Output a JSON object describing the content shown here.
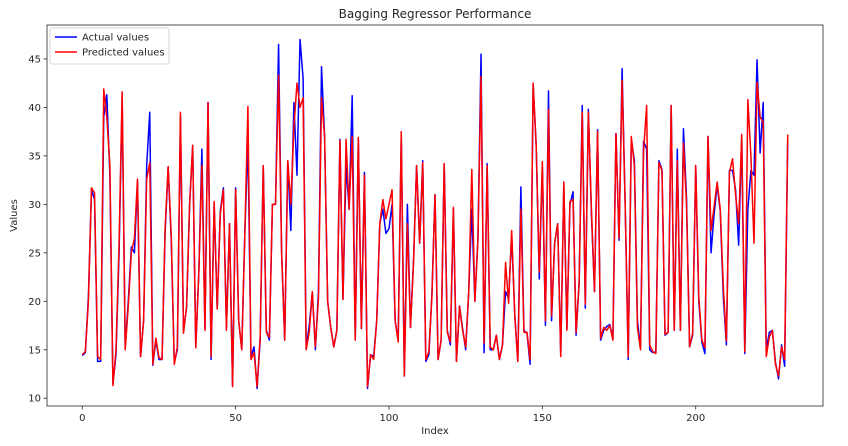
{
  "chart_data": {
    "type": "line",
    "title": "Bagging Regressor Performance",
    "xlabel": "Index",
    "ylabel": "Values",
    "xlim": [
      -11.5,
      241.5
    ],
    "ylim": [
      9.2,
      48.5
    ],
    "xticks": [
      0,
      50,
      100,
      150,
      200
    ],
    "yticks": [
      10,
      15,
      20,
      25,
      30,
      35,
      40,
      45
    ],
    "grid": false,
    "legend_position": "top-left",
    "series": [
      {
        "name": "Actual values",
        "color": "#0000ff",
        "values": [
          14.4,
          14.7,
          20.5,
          31.5,
          30.5,
          13.8,
          13.8,
          39.0,
          41.3,
          33.0,
          11.5,
          14.5,
          25.0,
          41.0,
          15.3,
          20.0,
          25.6,
          25.0,
          32.4,
          14.3,
          18.0,
          34.0,
          39.5,
          13.4,
          16.0,
          14.0,
          14.0,
          27.0,
          33.8,
          26.4,
          13.7,
          15.0,
          39.0,
          17.0,
          19.3,
          30.0,
          36.0,
          15.3,
          23.0,
          35.7,
          17.2,
          40.5,
          14.0,
          30.0,
          19.3,
          29.3,
          31.7,
          17.3,
          28.0,
          11.3,
          31.7,
          18.0,
          15.0,
          27.0,
          36.7,
          14.3,
          15.3,
          11.0,
          16.0,
          34.0,
          17.0,
          16.0,
          30.0,
          30.0,
          46.5,
          25.0,
          16.0,
          34.5,
          27.3,
          40.5,
          33.0,
          47.0,
          43.0,
          15.2,
          17.5,
          20.9,
          15.0,
          21.0,
          44.2,
          37.0,
          20.0,
          17.3,
          15.3,
          17.0,
          36.7,
          20.2,
          34.0,
          29.5,
          41.2,
          16.0,
          36.7,
          17.2,
          33.3,
          11.0,
          14.5,
          14.3,
          18.0,
          28.0,
          29.5,
          27.0,
          27.5,
          30.0,
          18.0,
          16.0,
          37.0,
          12.3,
          30.0,
          17.3,
          24.2,
          34.0,
          26.0,
          34.5,
          13.8,
          14.5,
          20.8,
          31.0,
          14.0,
          16.0,
          34.2,
          17.0,
          15.5,
          29.5,
          13.8,
          19.5,
          17.2,
          15.0,
          21.0,
          29.5,
          20.0,
          26.5,
          45.5,
          14.7,
          34.2,
          15.0,
          15.0,
          16.5,
          14.0,
          15.5,
          21.0,
          20.3,
          26.8,
          18.7,
          13.8,
          31.8,
          17.0,
          16.7,
          13.5,
          42.3,
          36.0,
          22.3,
          33.9,
          17.5,
          41.7,
          18.0,
          26.0,
          28.0,
          14.5,
          32.0,
          17.2,
          30.0,
          31.3,
          16.5,
          22.0,
          40.2,
          19.3,
          39.8,
          29.0,
          21.0,
          37.7,
          16.0,
          17.0,
          17.4,
          17.6,
          16.1,
          37.3,
          26.3,
          44.0,
          30.0,
          14.0,
          36.7,
          34.5,
          18.0,
          15.2,
          36.5,
          35.7,
          15.0,
          14.7,
          14.8,
          34.5,
          33.6,
          16.5,
          16.8,
          40.2,
          17.0,
          35.7,
          17.0,
          37.8,
          30.7,
          15.3,
          16.5,
          34.0,
          20.0,
          15.8,
          14.6,
          37.0,
          25.0,
          29.0,
          32.0,
          29.3,
          20.5,
          15.5,
          33.5,
          33.5,
          31.5,
          25.8,
          37.0,
          14.6,
          29.5,
          33.5,
          33.0,
          44.9,
          35.3,
          40.5,
          15.0,
          16.8,
          17.0,
          13.7,
          12.0,
          15.5,
          13.3,
          36.7
        ]
      },
      {
        "name": "Predicted values",
        "color": "#ff0000",
        "values": [
          14.5,
          14.8,
          20.0,
          31.7,
          31.2,
          14.3,
          14.0,
          41.9,
          39.0,
          34.0,
          11.3,
          15.0,
          26.0,
          41.6,
          15.0,
          19.5,
          25.0,
          26.5,
          32.6,
          14.3,
          18.0,
          32.6,
          34.3,
          13.5,
          16.2,
          14.2,
          14.0,
          27.5,
          33.9,
          26.9,
          13.5,
          15.3,
          39.5,
          16.7,
          19.5,
          30.0,
          36.1,
          15.2,
          23.0,
          34.0,
          17.0,
          40.5,
          14.3,
          30.3,
          19.2,
          29.0,
          31.5,
          17.0,
          28.0,
          11.2,
          31.5,
          18.0,
          15.0,
          27.0,
          40.1,
          14.0,
          14.7,
          11.2,
          16.3,
          34.0,
          16.8,
          16.3,
          30.0,
          30.0,
          43.3,
          25.0,
          16.0,
          34.5,
          30.0,
          38.0,
          42.5,
          40.0,
          41.0,
          15.0,
          16.8,
          21.0,
          15.3,
          20.3,
          41.0,
          37.0,
          20.0,
          17.3,
          15.3,
          17.0,
          36.6,
          20.2,
          36.7,
          29.5,
          37.0,
          16.0,
          36.9,
          17.2,
          33.0,
          11.2,
          14.5,
          14.0,
          18.0,
          28.0,
          30.5,
          28.5,
          30.0,
          31.5,
          18.0,
          15.8,
          37.5,
          12.3,
          28.0,
          17.3,
          24.0,
          34.0,
          26.0,
          34.3,
          14.0,
          14.8,
          20.5,
          31.0,
          14.0,
          16.0,
          34.2,
          16.8,
          15.8,
          29.7,
          13.8,
          19.5,
          17.0,
          15.3,
          21.0,
          33.6,
          20.0,
          26.3,
          43.2,
          15.7,
          34.0,
          15.3,
          15.0,
          16.5,
          14.0,
          15.5,
          24.0,
          19.8,
          27.3,
          18.5,
          13.8,
          29.5,
          16.8,
          16.8,
          14.0,
          42.5,
          36.0,
          23.0,
          34.4,
          18.0,
          39.8,
          18.5,
          26.0,
          28.0,
          14.3,
          32.3,
          17.0,
          30.3,
          30.5,
          16.8,
          22.0,
          39.5,
          19.7,
          39.5,
          29.5,
          21.0,
          37.5,
          16.2,
          17.3,
          17.0,
          17.5,
          16.0,
          37.3,
          26.5,
          42.8,
          30.0,
          14.3,
          37.0,
          34.0,
          17.3,
          15.0,
          35.5,
          40.2,
          15.5,
          14.8,
          14.6,
          34.3,
          33.5,
          16.6,
          16.8,
          40.2,
          17.0,
          34.5,
          17.0,
          36.3,
          30.0,
          15.3,
          16.7,
          34.0,
          20.5,
          16.0,
          15.2,
          37.0,
          27.3,
          29.8,
          32.3,
          29.5,
          21.5,
          15.9,
          33.3,
          34.7,
          31.0,
          28.0,
          37.2,
          14.8,
          40.8,
          35.0,
          26.0,
          42.6,
          39.0,
          38.5,
          14.3,
          16.3,
          17.0,
          13.5,
          12.3,
          15.3,
          14.0,
          37.2
        ]
      }
    ]
  }
}
